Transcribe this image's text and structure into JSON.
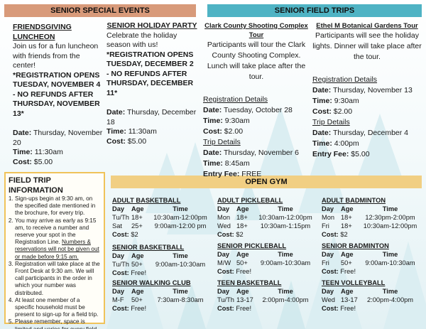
{
  "headers": {
    "events": "SENIOR SPECIAL EVENTS",
    "trips": "SENIOR FIELD TRIPS",
    "gym": "OPEN GYM"
  },
  "events": [
    {
      "title": "FRIENDSGIVING LUNCHEON",
      "desc": "Join us for a fun luncheon with friends from the center!",
      "reg": "*REGISTRATION OPENS TUESDAY, NOVEMBER 4 - NO REFUNDS AFTER THURSDAY, NOVEMBER 13*",
      "date_label": "Date:",
      "date": "Thursday, November 20",
      "time_label": "Time:",
      "time": "11:30am",
      "cost_label": "Cost:",
      "cost": "$5.00"
    },
    {
      "title": "SENIOR HOLIDAY PARTY",
      "desc": "Celebrate the holiday season with us!",
      "reg": "*REGISTRATION OPENS TUESDAY, DECEMBER 2 - NO REFUNDS AFTER THURSDAY, DECEMBER 11*",
      "date_label": "Date:",
      "date": "Thursday, December 18",
      "time_label": "Time:",
      "time": "11:30am",
      "cost_label": "Cost:",
      "cost": "$5.00"
    }
  ],
  "trips": [
    {
      "title": "Clark County Shooting Complex Tour",
      "desc": "Participants will tour the Clark County Shooting Complex. Lunch will take place after the tour.",
      "reg_heading": "Registration Details",
      "reg_date": "Tuesday, October 28",
      "reg_time": "9:30am",
      "reg_cost_label": "Cost:",
      "reg_cost": "$2.00",
      "trip_heading": "Trip Details",
      "trip_date": "Thursday, November 6",
      "trip_time": "8:45am",
      "fee_label": "Entry Fee:",
      "fee": "FREE"
    },
    {
      "title": "Ethel M Botanical Gardens Tour",
      "desc": "Participants will see the holiday lights. Dinner will take place after the tour.",
      "reg_heading": "Registration Details",
      "reg_date": "Thursday, November 13",
      "reg_time": "9:30am",
      "reg_cost_label": "Cost:",
      "reg_cost": "$2.00",
      "trip_heading": "Trip Details",
      "trip_date": "Thursday, December 4",
      "trip_time": "4:00pm",
      "fee_label": "Entry Fee:",
      "fee": "$5.00"
    }
  ],
  "labels": {
    "date": "Date:",
    "time": "Time:"
  },
  "info": {
    "title": "FIELD TRIP INFORMATION",
    "items": [
      "Sign-ups begin at 9:30 am, on the specified date mentioned in the brochure, for every trip.",
      "You may arrive as early as 9:15 am, to receive a number and reserve your spot in the Registration Line.",
      "Numbers & reservations will not be given out or made before 9:15 am.",
      "Registration will take place at the Front Desk at 9:30 am. We will call participants in the order in which your number was distributed.",
      "At least one member of a specific household must be present to sign-up for a field trip.",
      "Please remember, space is limited and varies for every field trip."
    ]
  },
  "gym_headers": {
    "day": "Day",
    "age": "Age",
    "time": "Time"
  },
  "gym": [
    {
      "title": "ADULT BASKETBALL",
      "rows": [
        [
          "Tu/Th",
          "18+",
          "10:30am-12:00pm"
        ],
        [
          "Sat",
          "25+",
          "9:00am-12:00 pm"
        ]
      ],
      "cost_label": "Cost:",
      "cost": "$2"
    },
    {
      "title": "SENIOR BASKETBALL",
      "rows": [
        [
          "Tu/Th",
          "50+",
          "9:00am-10:30am"
        ]
      ],
      "cost_label": "Cost:",
      "cost": "Free!"
    },
    {
      "title": "SENIOR WALKING CLUB",
      "rows": [
        [
          "M-F",
          "50+",
          "7:30am-8:30am"
        ]
      ],
      "cost_label": "Cost:",
      "cost": "Free!"
    },
    {
      "title": "ADULT PICKLEBALL",
      "rows": [
        [
          "Mon",
          "18+",
          "10:30am-12:00pm"
        ],
        [
          "Wed",
          "18+",
          "10:30am-1:15pm"
        ]
      ],
      "cost_label": "Cost:",
      "cost": "$2"
    },
    {
      "title": "SENIOR PICKLEBALL",
      "rows": [
        [
          "M/W",
          "50+",
          "9:00am-10:30am"
        ]
      ],
      "cost_label": "Cost:",
      "cost": "Free!"
    },
    {
      "title": "TEEN BASKETBALL",
      "rows": [
        [
          "Tu/Th",
          "13-17",
          "2:00pm-4:00pm"
        ]
      ],
      "cost_label": "Cost:",
      "cost": "Free!"
    },
    {
      "title": "ADULT BADMINTON",
      "rows": [
        [
          "Mon",
          "18+",
          "12:30pm-2:00pm"
        ],
        [
          "Fri",
          "18+",
          "10:30am-12:00pm"
        ]
      ],
      "cost_label": "Cost:",
      "cost": "$2"
    },
    {
      "title": "SENIOR BADMINTON",
      "rows": [
        [
          "Fri",
          "50+",
          "9:00am-10:30am"
        ]
      ],
      "cost_label": "Cost:",
      "cost": "Free!"
    },
    {
      "title": "TEEN VOLLEYBALL",
      "rows": [
        [
          "Wed",
          "13-17",
          "2:00pm-4:00pm"
        ]
      ],
      "cost_label": "Cost:",
      "cost": "Free!"
    }
  ],
  "colors": {
    "events_header": "#d89a7a",
    "trips_header": "#4fb3c4",
    "gym_header": "#f1cf83",
    "info_border": "#f0c35a"
  }
}
